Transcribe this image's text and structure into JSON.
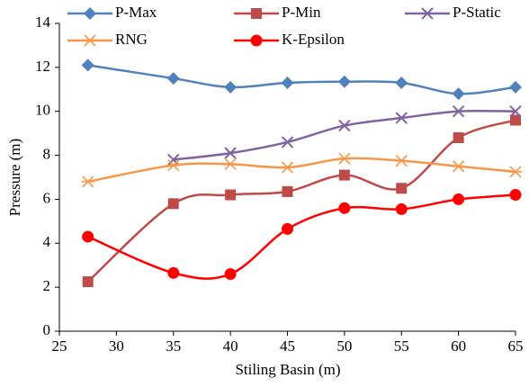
{
  "chart_data": {
    "type": "line",
    "x_label": "Stiling Basin (m)",
    "y_label": "Pressure (m)",
    "x": [
      27.5,
      35,
      40,
      45,
      50,
      55,
      60,
      65
    ],
    "series": [
      {
        "name": "P-Max",
        "color": "#4f81bd",
        "marker": "diamond",
        "values": [
          12.1,
          11.5,
          11.1,
          11.3,
          11.35,
          11.3,
          10.8,
          11.1
        ]
      },
      {
        "name": "P-Min",
        "color": "#be4b48",
        "marker": "square",
        "values": [
          2.25,
          5.8,
          6.2,
          6.35,
          7.1,
          6.5,
          8.8,
          9.6
        ]
      },
      {
        "name": "P-Static",
        "color": "#8064a2",
        "marker": "x",
        "values": [
          null,
          7.8,
          8.1,
          8.6,
          9.35,
          9.7,
          10.0,
          10.0
        ]
      },
      {
        "name": "RNG",
        "color": "#f79646",
        "marker": "star",
        "values": [
          6.8,
          7.55,
          7.6,
          7.45,
          7.85,
          7.75,
          7.5,
          7.25
        ]
      },
      {
        "name": "K-Epsilon",
        "color": "#ff0000",
        "marker": "circle",
        "values": [
          4.3,
          2.65,
          2.6,
          4.65,
          5.6,
          5.55,
          6.0,
          6.2
        ]
      }
    ],
    "xlim": [
      25,
      65
    ],
    "xticks": [
      25,
      30,
      35,
      40,
      45,
      50,
      55,
      60,
      65
    ],
    "ylim": [
      0,
      14
    ],
    "yticks": [
      0,
      2,
      4,
      6,
      8,
      10,
      12,
      14
    ],
    "smooth": true,
    "grid": false,
    "legend": "top"
  }
}
